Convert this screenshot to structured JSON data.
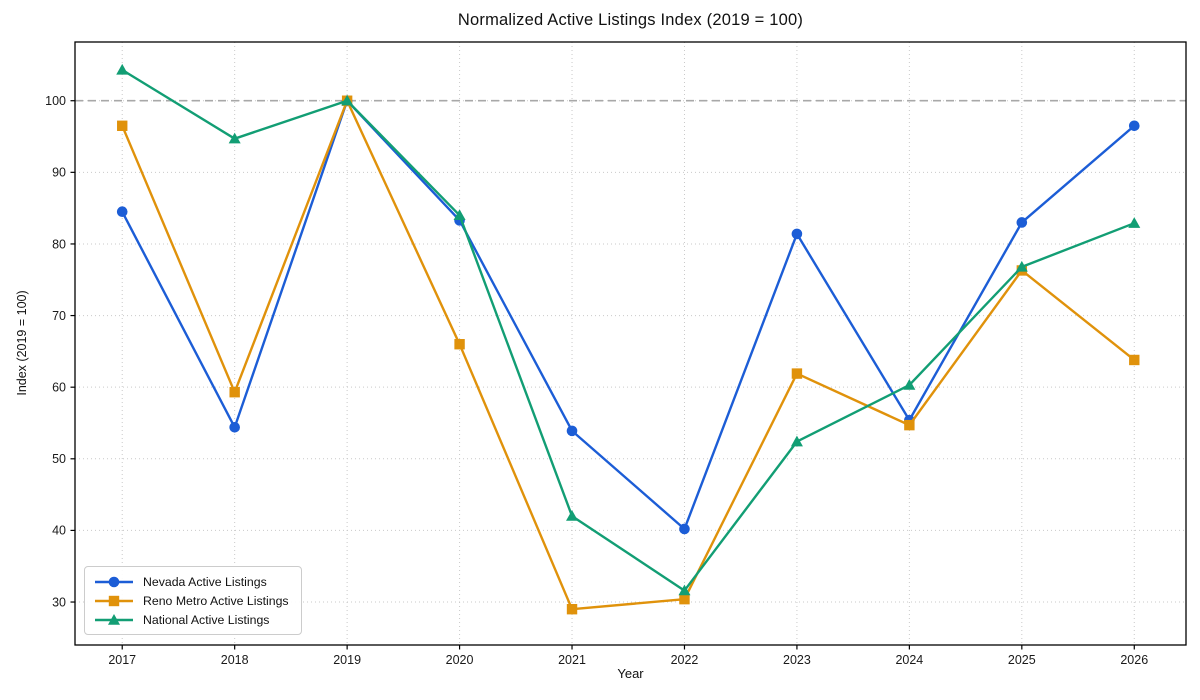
{
  "chart_data": {
    "type": "line",
    "title": "Normalized Active Listings Index (2019 = 100)",
    "xlabel": "Year",
    "ylabel": "Index (2019 = 100)",
    "categories": [
      2017,
      2018,
      2019,
      2020,
      2021,
      2022,
      2023,
      2024,
      2025,
      2026
    ],
    "series": [
      {
        "name": "Nevada Active Listings",
        "color": "#1c5dd6",
        "marker": "circle",
        "values": [
          84.5,
          54.4,
          100.0,
          83.3,
          53.9,
          40.2,
          81.4,
          55.4,
          83.0,
          96.5
        ]
      },
      {
        "name": "Reno Metro Active Listings",
        "color": "#e0920b",
        "marker": "square",
        "values": [
          96.5,
          59.3,
          100.0,
          66.0,
          29.0,
          30.4,
          61.9,
          54.7,
          76.3,
          63.8
        ]
      },
      {
        "name": "National Active Listings",
        "color": "#129e74",
        "marker": "triangle",
        "values": [
          104.3,
          94.7,
          100.0,
          84.0,
          42.0,
          31.6,
          52.4,
          60.3,
          76.8,
          82.9
        ]
      }
    ],
    "reference_line": {
      "value": 100,
      "color": "#a8a8a8",
      "style": "dashed"
    },
    "xlim": [
      2016.58,
      2026.46
    ],
    "ylim": [
      24,
      108.2
    ],
    "yticks": [
      30,
      40,
      50,
      60,
      70,
      80,
      90,
      100
    ],
    "xticks": [
      2017,
      2018,
      2019,
      2020,
      2021,
      2022,
      2023,
      2024,
      2025,
      2026
    ],
    "grid": true,
    "grid_style": "dotted",
    "legend_position": "lower-left",
    "colors": {
      "grid": "#c9c9c9",
      "spine": "#000000",
      "tick_label": "#1a1a1a",
      "background": "#ffffff"
    }
  }
}
